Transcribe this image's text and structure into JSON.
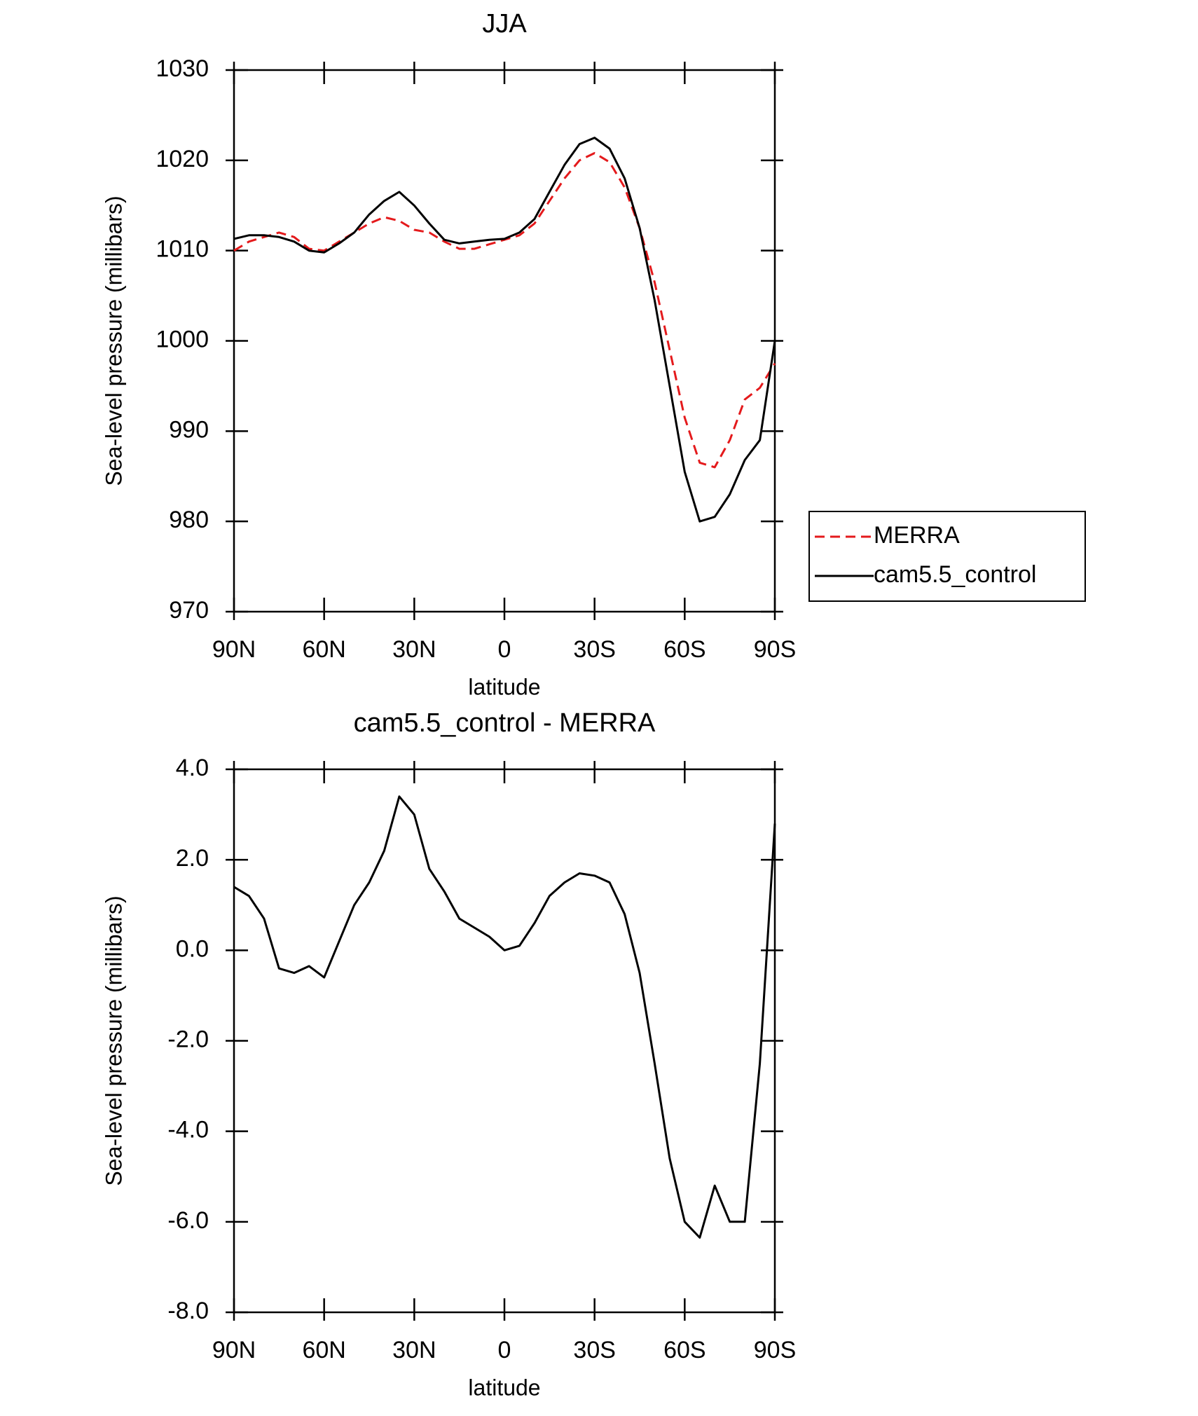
{
  "chart_data": [
    {
      "type": "line",
      "title": "JJA",
      "xlabel": "latitude",
      "ylabel": "Sea-level pressure (millibars)",
      "x": [
        90,
        85,
        80,
        75,
        70,
        65,
        60,
        55,
        50,
        45,
        40,
        35,
        30,
        25,
        20,
        15,
        10,
        5,
        0,
        -5,
        -10,
        -15,
        -20,
        -25,
        -30,
        -35,
        -40,
        -45,
        -50,
        -55,
        -60,
        -65,
        -70,
        -75,
        -80,
        -85,
        -90
      ],
      "series": [
        {
          "name": "MERRA",
          "color": "#e41a1c",
          "dash": true,
          "values": [
            1010,
            1011,
            1011.5,
            1012,
            1011.5,
            1010.2,
            1010,
            1011,
            1012,
            1013,
            1013.7,
            1013.3,
            1012.3,
            1012,
            1011,
            1010.2,
            1010.2,
            1010.7,
            1011.2,
            1011.7,
            1013,
            1015.5,
            1018,
            1020,
            1020.8,
            1019.8,
            1017,
            1012.5,
            1006.5,
            999,
            991.5,
            986.5,
            986,
            989,
            993.5,
            994.8,
            997.5
          ]
        },
        {
          "name": "cam5.5_control",
          "color": "#000000",
          "dash": false,
          "values": [
            1011.3,
            1011.7,
            1011.7,
            1011.5,
            1011,
            1010,
            1009.8,
            1010.8,
            1012,
            1014,
            1015.5,
            1016.5,
            1015,
            1013,
            1011.2,
            1010.8,
            1011,
            1011.2,
            1011.3,
            1012,
            1013.5,
            1016.5,
            1019.5,
            1021.8,
            1022.5,
            1021.3,
            1018,
            1012.5,
            1004.5,
            995,
            985.5,
            980,
            980.5,
            983,
            986.8,
            989,
            1000
          ]
        }
      ],
      "xlim": [
        90,
        -90
      ],
      "xticks": [
        {
          "value": 90,
          "label": "90N"
        },
        {
          "value": 60,
          "label": "60N"
        },
        {
          "value": 30,
          "label": "30N"
        },
        0,
        {
          "value": -30,
          "label": "30S"
        },
        {
          "value": -60,
          "label": "60S"
        },
        {
          "value": -90,
          "label": "90S"
        }
      ],
      "ylim": [
        970,
        1030
      ],
      "yticks": [
        970,
        980,
        990,
        1000,
        1010,
        1020,
        1030
      ],
      "legend": "outside-right"
    },
    {
      "type": "line",
      "title": "cam5.5_control - MERRA",
      "xlabel": "latitude",
      "ylabel": "Sea-level pressure (millibars)",
      "x": [
        90,
        85,
        80,
        75,
        70,
        65,
        60,
        55,
        50,
        45,
        40,
        35,
        30,
        25,
        20,
        15,
        10,
        5,
        0,
        -5,
        -10,
        -15,
        -20,
        -25,
        -30,
        -35,
        -40,
        -45,
        -50,
        -55,
        -60,
        -65,
        -70,
        -75,
        -80,
        -85,
        -90
      ],
      "series": [
        {
          "color": "#000000",
          "dash": false,
          "values": [
            1.4,
            1.2,
            0.7,
            -0.4,
            -0.5,
            -0.35,
            -0.6,
            0.2,
            1.0,
            1.5,
            2.2,
            3.4,
            3.0,
            1.8,
            1.3,
            0.7,
            0.5,
            0.3,
            0.0,
            0.1,
            0.6,
            1.2,
            1.5,
            1.7,
            1.65,
            1.5,
            0.8,
            -0.5,
            -2.5,
            -4.6,
            -6.0,
            -6.35,
            -5.2,
            -6.0,
            -6.0,
            -2.5,
            2.8
          ]
        }
      ],
      "xlim": [
        90,
        -90
      ],
      "xticks": [
        {
          "value": 90,
          "label": "90N"
        },
        {
          "value": 60,
          "label": "60N"
        },
        {
          "value": 30,
          "label": "30N"
        },
        0,
        {
          "value": -30,
          "label": "30S"
        },
        {
          "value": -60,
          "label": "60S"
        },
        {
          "value": -90,
          "label": "90S"
        }
      ],
      "ylim": [
        -8,
        4
      ],
      "yticks": [
        {
          "value": -8,
          "label": "-8.0"
        },
        {
          "value": -6,
          "label": "-6.0"
        },
        {
          "value": -4,
          "label": "-4.0"
        },
        {
          "value": -2,
          "label": "-2.0"
        },
        {
          "value": 0,
          "label": "0.0"
        },
        {
          "value": 2,
          "label": "2.0"
        },
        {
          "value": 4,
          "label": "4.0"
        }
      ]
    }
  ]
}
